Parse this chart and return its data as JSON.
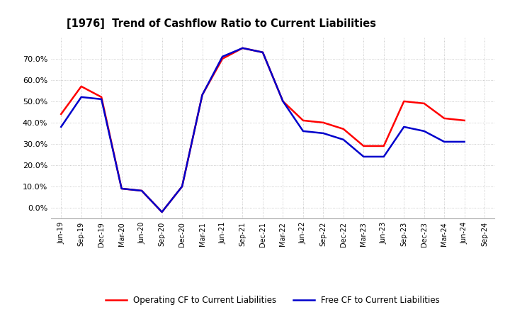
{
  "title": "[1976]  Trend of Cashflow Ratio to Current Liabilities",
  "x_labels": [
    "Jun-19",
    "Sep-19",
    "Dec-19",
    "Mar-20",
    "Jun-20",
    "Sep-20",
    "Dec-20",
    "Mar-21",
    "Jun-21",
    "Sep-21",
    "Dec-21",
    "Mar-22",
    "Jun-22",
    "Sep-22",
    "Dec-22",
    "Mar-23",
    "Jun-23",
    "Sep-23",
    "Dec-23",
    "Mar-24",
    "Jun-24",
    "Sep-24"
  ],
  "operating_cf": [
    0.44,
    0.57,
    0.52,
    0.09,
    0.08,
    -0.02,
    0.1,
    0.53,
    0.7,
    0.75,
    0.73,
    0.5,
    0.41,
    0.4,
    0.37,
    0.29,
    0.29,
    0.5,
    0.49,
    0.42,
    0.41,
    null
  ],
  "free_cf": [
    0.38,
    0.52,
    0.51,
    0.09,
    0.08,
    -0.02,
    0.1,
    0.53,
    0.71,
    0.75,
    0.73,
    0.5,
    0.36,
    0.35,
    0.32,
    0.24,
    0.24,
    0.38,
    0.36,
    0.31,
    0.31,
    null
  ],
  "ylim": [
    -0.05,
    0.8
  ],
  "yticks": [
    0.0,
    0.1,
    0.2,
    0.3,
    0.4,
    0.5,
    0.6,
    0.7
  ],
  "operating_color": "#ff0000",
  "free_color": "#0000cc",
  "legend_operating": "Operating CF to Current Liabilities",
  "legend_free": "Free CF to Current Liabilities",
  "background_color": "#ffffff",
  "plot_bg_color": "#ffffff",
  "grid_color": "#bbbbbb"
}
